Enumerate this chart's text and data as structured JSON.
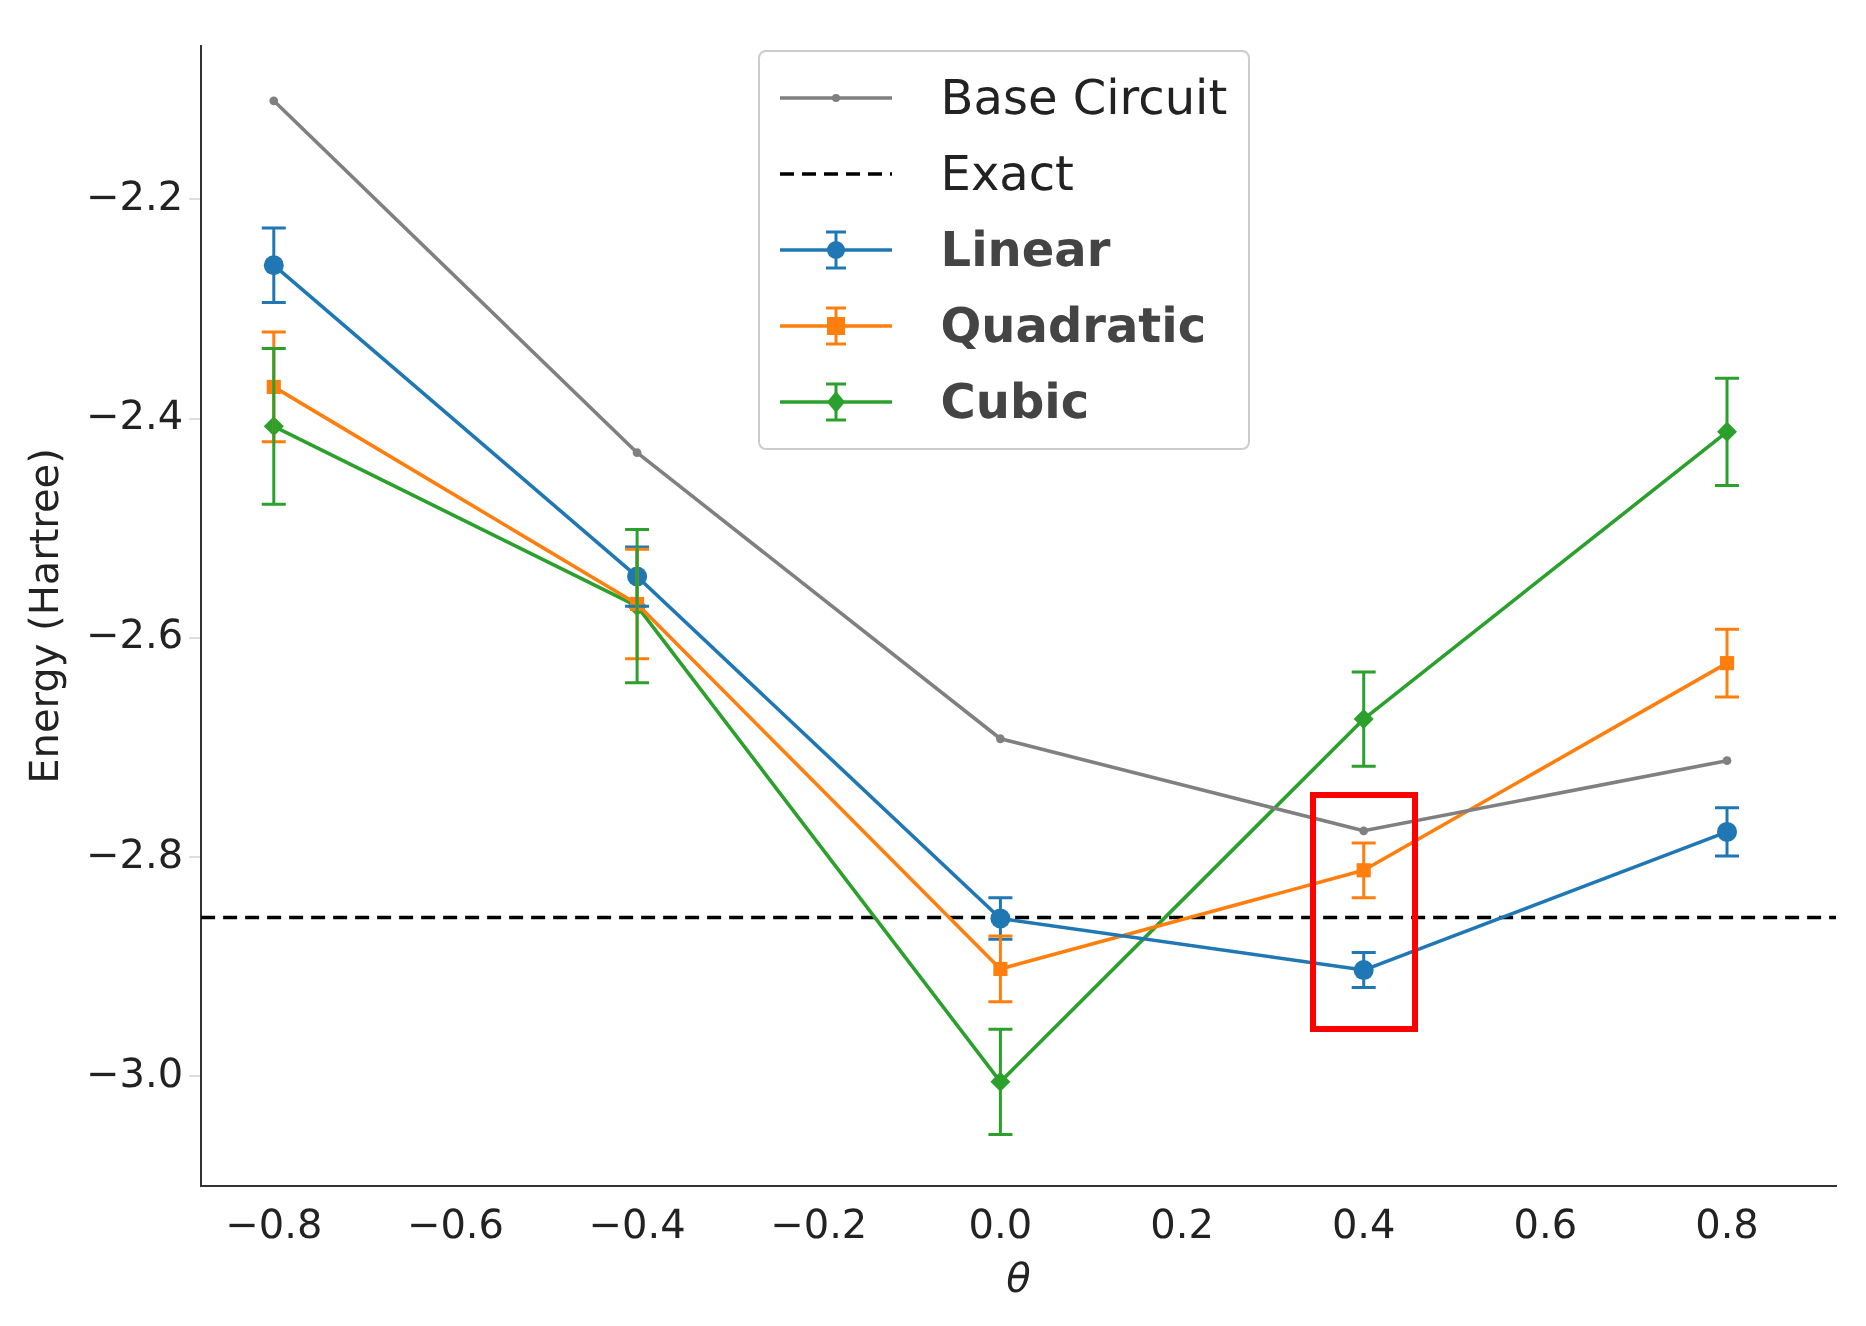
{
  "chart_data": {
    "type": "line",
    "xlabel": "θ",
    "ylabel": "Energy (Hartree)",
    "x": [
      -0.8,
      -0.4,
      0.0,
      0.4,
      0.8
    ],
    "xlim": [
      -0.88,
      0.92
    ],
    "xticks": [
      {
        "value": -0.8,
        "label": "−0.8"
      },
      {
        "value": -0.6,
        "label": "−0.6"
      },
      {
        "value": -0.4,
        "label": "−0.4"
      },
      {
        "value": -0.2,
        "label": "−0.2"
      },
      {
        "value": 0,
        "label": "0.0"
      },
      {
        "value": 0.2,
        "label": "0.2"
      },
      {
        "value": 0.4,
        "label": "0.4"
      },
      {
        "value": 0.6,
        "label": "0.6"
      },
      {
        "value": 0.8,
        "label": "0.8"
      }
    ],
    "ylim": [
      -3.1,
      -2.06
    ],
    "yticks": [
      {
        "value": -3,
        "label": "−3.0"
      },
      {
        "value": -2.8,
        "label": "−2.8"
      },
      {
        "value": -2.6,
        "label": "−2.6"
      },
      {
        "value": -2.4,
        "label": "−2.4"
      },
      {
        "value": -2.2,
        "label": "−2.2"
      }
    ],
    "grid": false,
    "legend": "top",
    "line_style": "solid",
    "series": [
      {
        "name": "Base Circuit",
        "color": "#808080",
        "marker": "circle",
        "values": [
          -2.11,
          -2.431,
          -2.692,
          -2.776,
          -2.712
        ]
      },
      {
        "name": "Linear",
        "color": "#1f77b4",
        "marker": "circle",
        "values": [
          -2.26,
          -2.544,
          -2.856,
          -2.903,
          -2.777
        ],
        "errors": [
          0.034,
          0.027,
          0.019,
          0.016,
          0.022
        ]
      },
      {
        "name": "Quadratic",
        "color": "#ff7f0e",
        "marker": "square",
        "values": [
          -2.371,
          -2.569,
          -2.902,
          -2.812,
          -2.623
        ],
        "errors": [
          0.05,
          0.05,
          0.03,
          0.025,
          0.031
        ]
      },
      {
        "name": "Cubic",
        "color": "#2ca02c",
        "marker": "diamond",
        "values": [
          -2.407,
          -2.571,
          -3.005,
          -2.674,
          -2.412
        ],
        "errors": [
          0.071,
          0.07,
          0.048,
          0.043,
          0.049
        ]
      }
    ],
    "ref_lines": [
      {
        "axis": "y",
        "value": -2.855,
        "label": "Exact",
        "color": "#000000",
        "line_style": "dashed"
      }
    ]
  }
}
